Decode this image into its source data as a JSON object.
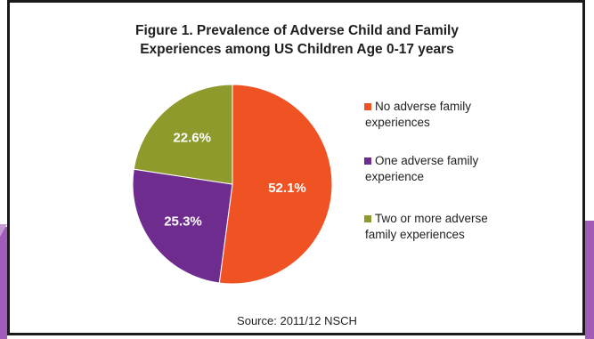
{
  "title_line1": "Figure 1. Prevalence of Adverse Child and Family",
  "title_line2": "Experiences among US Children Age 0-17 years",
  "source": "Source: 2011/12 NSCH",
  "chart_data": {
    "type": "pie",
    "title": "Figure 1. Prevalence of Adverse Child and Family Experiences among US Children Age 0-17 years",
    "legend_position": "right",
    "slices": [
      {
        "legend_lines": [
          "No adverse family",
          "experiences"
        ],
        "value": 52.1,
        "label": "52.1%",
        "color": "#f05323"
      },
      {
        "legend_lines": [
          "One adverse family",
          "experience"
        ],
        "value": 25.3,
        "label": "25.3%",
        "color": "#6f2c8f"
      },
      {
        "legend_lines": [
          "Two or more adverse",
          "family experiences"
        ],
        "value": 22.6,
        "label": "22.6%",
        "color": "#8e9a2b"
      }
    ]
  }
}
